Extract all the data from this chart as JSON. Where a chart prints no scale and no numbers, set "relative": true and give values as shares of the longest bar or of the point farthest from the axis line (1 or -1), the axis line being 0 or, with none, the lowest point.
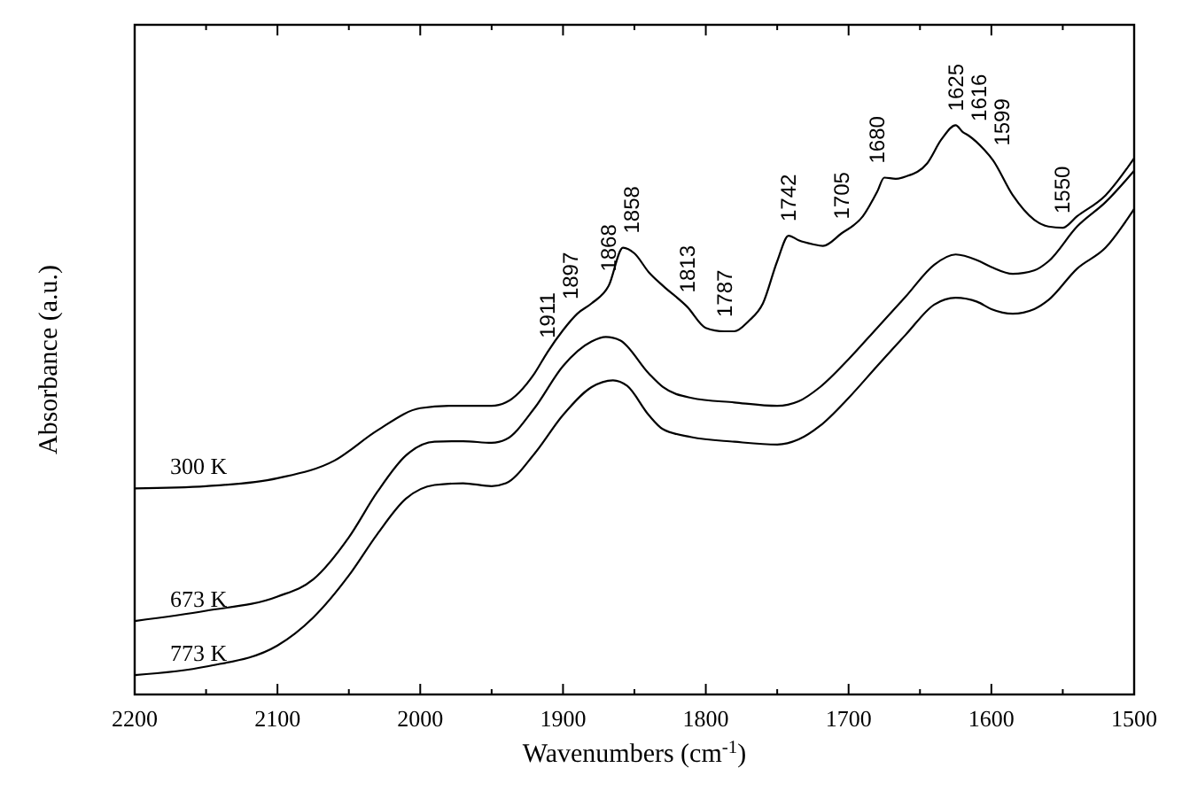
{
  "chart_data": {
    "type": "line",
    "relative": true,
    "xlabel": "Wavenumbers (cm$^{-1}$)",
    "ylabel": "Absorbance (a.u.)",
    "xlim": [
      2200,
      1500
    ],
    "xticks": [
      2200,
      {
        "value": 2150,
        "label": null
      },
      2100,
      {
        "value": 2050,
        "label": null
      },
      2000,
      {
        "value": 1950,
        "label": null
      },
      1900,
      {
        "value": 1850,
        "label": null
      },
      1800,
      {
        "value": 1750,
        "label": null
      },
      1700,
      {
        "value": 1650,
        "label": null
      },
      1600,
      {
        "value": 1550,
        "label": null
      },
      1500
    ],
    "tick_labels": "x",
    "grid": false,
    "line_style": "solid",
    "series": [
      {
        "name": "300 K",
        "color": "#000000",
        "x": [
          2200,
          2150,
          2100,
          2060,
          2030,
          2000,
          1980,
          1950,
          1940,
          1920,
          1911,
          1900,
          1890,
          1880,
          1868,
          1858,
          1850,
          1840,
          1830,
          1813,
          1800,
          1787,
          1780,
          1770,
          1760,
          1750,
          1742,
          1735,
          1725,
          1718,
          1705,
          1690,
          1680,
          1675,
          1667,
          1660,
          1645,
          1635,
          1625,
          1620,
          1616,
          1605,
          1599,
          1585,
          1570,
          1560,
          1550,
          1540,
          1520,
          1500
        ],
        "values": [
          0.362,
          0.366,
          0.38,
          0.411,
          0.464,
          0.503,
          0.507,
          0.507,
          0.513,
          0.564,
          0.601,
          0.64,
          0.669,
          0.687,
          0.718,
          0.785,
          0.775,
          0.742,
          0.718,
          0.681,
          0.644,
          0.638,
          0.638,
          0.656,
          0.687,
          0.761,
          0.806,
          0.798,
          0.791,
          0.788,
          0.81,
          0.84,
          0.883,
          0.908,
          0.906,
          0.91,
          0.933,
          0.975,
          1,
          0.988,
          0.982,
          0.957,
          0.939,
          0.877,
          0.834,
          0.822,
          0.82,
          0.84,
          0.877,
          0.942
        ]
      },
      {
        "name": "673 K",
        "color": "#000000",
        "x": [
          2200,
          2150,
          2100,
          2075,
          2050,
          2030,
          2010,
          1990,
          1970,
          1950,
          1940,
          1920,
          1900,
          1880,
          1870,
          1860,
          1840,
          1830,
          1810,
          1780,
          1750,
          1735,
          1720,
          1700,
          1680,
          1660,
          1640,
          1625,
          1610,
          1600,
          1585,
          1570,
          1560,
          1540,
          1520,
          1500
        ],
        "values": [
          0.129,
          0.147,
          0.172,
          0.202,
          0.276,
          0.356,
          0.42,
          0.444,
          0.445,
          0.442,
          0.448,
          0.503,
          0.577,
          0.62,
          0.628,
          0.622,
          0.564,
          0.54,
          0.521,
          0.513,
          0.507,
          0.515,
          0.54,
          0.589,
          0.644,
          0.699,
          0.755,
          0.773,
          0.763,
          0.751,
          0.739,
          0.745,
          0.761,
          0.822,
          0.865,
          0.92
        ]
      },
      {
        "name": "773 K",
        "color": "#000000",
        "x": [
          2200,
          2150,
          2100,
          2075,
          2050,
          2030,
          2010,
          1990,
          1970,
          1950,
          1940,
          1920,
          1900,
          1880,
          1865,
          1855,
          1840,
          1830,
          1810,
          1780,
          1750,
          1735,
          1720,
          1700,
          1680,
          1660,
          1640,
          1625,
          1610,
          1600,
          1585,
          1570,
          1560,
          1540,
          1520,
          1500
        ],
        "values": [
          0.034,
          0.049,
          0.086,
          0.135,
          0.209,
          0.282,
          0.344,
          0.368,
          0.371,
          0.366,
          0.371,
          0.423,
          0.491,
          0.54,
          0.552,
          0.542,
          0.491,
          0.466,
          0.452,
          0.444,
          0.439,
          0.448,
          0.472,
          0.521,
          0.577,
          0.632,
          0.685,
          0.697,
          0.69,
          0.677,
          0.669,
          0.677,
          0.693,
          0.748,
          0.785,
          0.853
        ]
      }
    ],
    "annotations": [
      {
        "text": "1911",
        "x": 1911,
        "y": 0.601
      },
      {
        "text": "1897",
        "x": 1897,
        "y": 0.65
      },
      {
        "text": "1868",
        "x": 1868,
        "y": 0.718
      },
      {
        "text": "1858",
        "x": 1858,
        "y": 0.785
      },
      {
        "text": "1813",
        "x": 1813,
        "y": 0.681
      },
      {
        "text": "1787",
        "x": 1787,
        "y": 0.638
      },
      {
        "text": "1742",
        "x": 1742,
        "y": 0.806
      },
      {
        "text": "1705",
        "x": 1705,
        "y": 0.81
      },
      {
        "text": "1680",
        "x": 1680,
        "y": 0.883
      },
      {
        "text": "1625",
        "x": 1625,
        "y": 1
      },
      {
        "text": "1616",
        "x": 1616,
        "y": 0.982
      },
      {
        "text": "1599",
        "x": 1599,
        "y": 0.939
      },
      {
        "text": "1550",
        "x": 1550,
        "y": 0.82
      }
    ]
  }
}
